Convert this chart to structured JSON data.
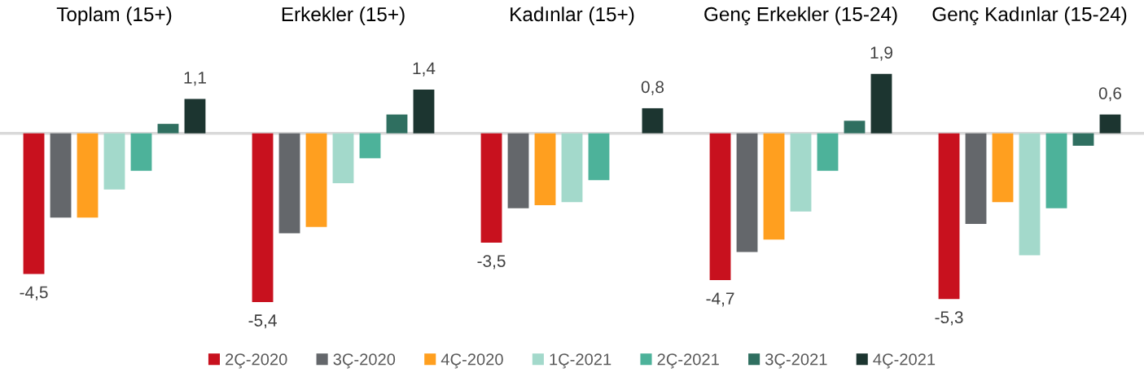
{
  "chart_data": {
    "type": "bar",
    "categories": [
      "Toplam (15+)",
      "Erkekler (15+)",
      "Kadınlar (15+)",
      "Genç Erkekler (15-24)",
      "Genç Kadınlar (15-24)"
    ],
    "series": [
      {
        "name": "2Ç-2020",
        "color": "#c8111e",
        "values": [
          -4.5,
          -5.4,
          -3.5,
          -4.7,
          -5.3
        ],
        "value_labels": [
          "-4,5",
          "-5,4",
          "-3,5",
          "-4,7",
          "-5,3"
        ]
      },
      {
        "name": "3Ç-2020",
        "color": "#64676b",
        "values": [
          -2.7,
          -3.2,
          -2.4,
          -3.8,
          -2.9
        ]
      },
      {
        "name": "4Ç-2020",
        "color": "#ff9f1f",
        "values": [
          -2.7,
          -3.0,
          -2.3,
          -3.4,
          -2.2
        ]
      },
      {
        "name": "1Ç-2021",
        "color": "#a3d9cb",
        "values": [
          -1.8,
          -1.6,
          -2.2,
          -2.5,
          -3.9
        ]
      },
      {
        "name": "2Ç-2021",
        "color": "#4db29a",
        "values": [
          -1.2,
          -0.8,
          -1.5,
          -1.2,
          -2.4
        ]
      },
      {
        "name": "3Ç-2021",
        "color": "#2f6f60",
        "values": [
          0.3,
          0.6,
          null,
          0.4,
          -0.4
        ]
      },
      {
        "name": "4Ç-2021",
        "color": "#1c3530",
        "values": [
          1.1,
          1.4,
          0.8,
          1.9,
          0.6
        ],
        "value_labels": [
          "1,1",
          "1,4",
          "0,8",
          "1,9",
          "0,6"
        ]
      }
    ],
    "tick_labels": "x",
    "legend": "bottom"
  }
}
